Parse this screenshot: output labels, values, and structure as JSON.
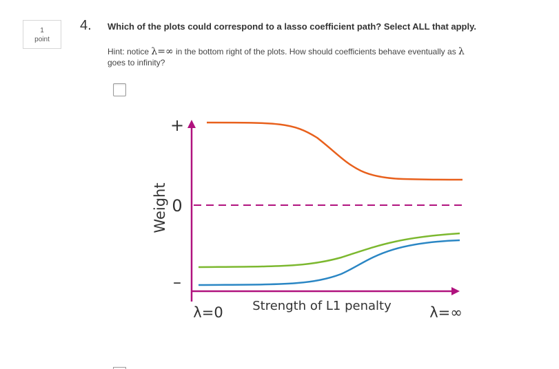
{
  "points": {
    "value": "1",
    "unit": "point"
  },
  "question": {
    "number": "4.",
    "text": "Which of the plots could correspond to a lasso coefficient path? Select ALL that apply.",
    "hint_prefix": "Hint: notice",
    "hint_lambda": "λ",
    "hint_equals": "=",
    "hint_infinity": "∞",
    "hint_mid": "in the bottom right of the plots. How should coefficients behave eventually as",
    "hint_lambda2": "λ",
    "hint_suffix": "goes to infinity?"
  },
  "options": [
    {
      "checked": false,
      "plot": {
        "ylabel": "Weight",
        "y_tick_plus": "+",
        "y_tick_zero": "0",
        "y_tick_minus": "–",
        "x_left_label": "λ=0",
        "x_center_label": "Strength of L1 penalty",
        "x_right_label": "λ=∞"
      }
    },
    {
      "checked": false
    }
  ],
  "colors": {
    "axis": "#b0127e",
    "zero_line": "#b0127e",
    "series_orange": "#e8601c",
    "series_green": "#7cb82f",
    "series_blue": "#2a86c4"
  }
}
